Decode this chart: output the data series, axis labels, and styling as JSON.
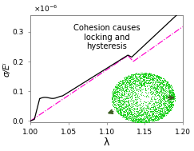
{
  "title": "Cohesion causes\nlocking and\nhysteresis",
  "xlabel": "λ",
  "ylabel": "σ/Eⁱ",
  "xlim": [
    1.0,
    1.2
  ],
  "ylim": [
    -5e-09,
    3.55e-07
  ],
  "yticks": [
    0.0,
    1e-07,
    2e-07,
    3e-07
  ],
  "ytick_labels": [
    "0.0",
    "0.1",
    "0.2",
    "0.3"
  ],
  "xticks": [
    1.0,
    1.05,
    1.1,
    1.15,
    1.2
  ],
  "xtick_labels": [
    "1.00",
    "1.05",
    "1.10",
    "1.15",
    "1.20"
  ],
  "background_color": "#ffffff",
  "line1_color": "#000000",
  "line2_color": "#ff00cc",
  "scatter_color": "#00cc00",
  "arrow_color": "#3a5a20"
}
